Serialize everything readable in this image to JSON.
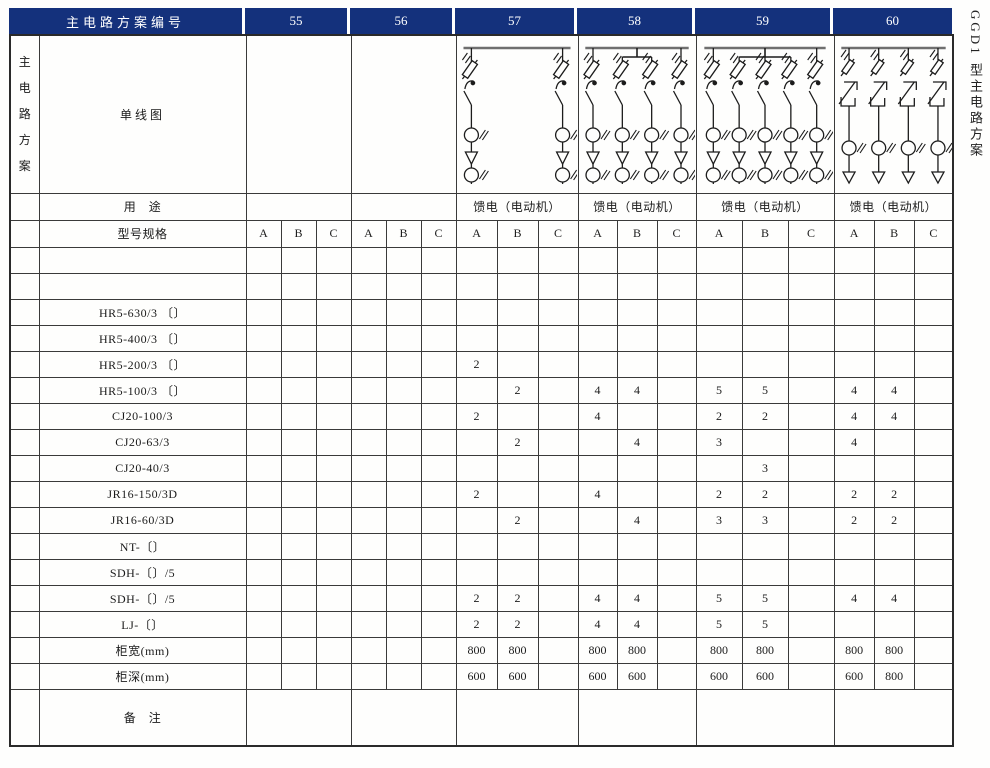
{
  "side_title": "GGD1 型主电路方案",
  "colors": {
    "header_bg": "#14317c",
    "header_text": "#ffffff",
    "grid_line": "#3a3a3a",
    "diagram_stroke": "#1c1c1c",
    "bus_stroke": "#6f6f6f"
  },
  "header": {
    "label": "主电路方案编号",
    "schemes": [
      "55",
      "56",
      "57",
      "58",
      "59",
      "60"
    ]
  },
  "left_panel": {
    "vertical_label": "主电路方案"
  },
  "labels": {
    "diagram": "单线图",
    "usage": "用　途",
    "spec": "型号规格",
    "remarks": "备　注"
  },
  "usage_by_scheme": [
    "",
    "",
    "馈电（电动机）",
    "馈电（电动机）",
    "馈电（电动机）",
    "馈电（电动机）"
  ],
  "spec_sublabels": [
    "A",
    "B",
    "C"
  ],
  "diagrams": {
    "55": null,
    "56": null,
    "57": {
      "feeders": 2,
      "type": "contactor",
      "bracket": null
    },
    "58": {
      "feeders": 4,
      "type": "contactor",
      "bracket": [
        2,
        3
      ]
    },
    "59": {
      "feeders": 5,
      "type": "contactor",
      "bracket": [
        2,
        4
      ]
    },
    "60": {
      "feeders": 4,
      "type": "breaker",
      "bracket": null
    }
  },
  "table": {
    "columns": [
      "55A",
      "55B",
      "55C",
      "56A",
      "56B",
      "56C",
      "57A",
      "57B",
      "57C",
      "58A",
      "58B",
      "58C",
      "59A",
      "59B",
      "59C",
      "60A",
      "60B",
      "60C"
    ],
    "rows": [
      {
        "name": "",
        "values": [
          "",
          "",
          "",
          "",
          "",
          "",
          "",
          "",
          "",
          "",
          "",
          "",
          "",
          "",
          "",
          "",
          "",
          ""
        ]
      },
      {
        "name": "",
        "values": [
          "",
          "",
          "",
          "",
          "",
          "",
          "",
          "",
          "",
          "",
          "",
          "",
          "",
          "",
          "",
          "",
          "",
          ""
        ]
      },
      {
        "name": "HR5-630/3 〔〕",
        "values": [
          "",
          "",
          "",
          "",
          "",
          "",
          "",
          "",
          "",
          "",
          "",
          "",
          "",
          "",
          "",
          "",
          "",
          ""
        ]
      },
      {
        "name": "HR5-400/3 〔〕",
        "values": [
          "",
          "",
          "",
          "",
          "",
          "",
          "",
          "",
          "",
          "",
          "",
          "",
          "",
          "",
          "",
          "",
          "",
          ""
        ]
      },
      {
        "name": "HR5-200/3 〔〕",
        "values": [
          "",
          "",
          "",
          "",
          "",
          "",
          "2",
          "",
          "",
          "",
          "",
          "",
          "",
          "",
          "",
          "",
          "",
          ""
        ]
      },
      {
        "name": "HR5-100/3 〔〕",
        "values": [
          "",
          "",
          "",
          "",
          "",
          "",
          "",
          "2",
          "",
          "4",
          "4",
          "",
          "5",
          "5",
          "",
          "4",
          "4",
          ""
        ]
      },
      {
        "name": "CJ20-100/3",
        "values": [
          "",
          "",
          "",
          "",
          "",
          "",
          "2",
          "",
          "",
          "4",
          "",
          "",
          "2",
          "2",
          "",
          "4",
          "4",
          ""
        ]
      },
      {
        "name": "CJ20-63/3",
        "values": [
          "",
          "",
          "",
          "",
          "",
          "",
          "",
          "2",
          "",
          "",
          "4",
          "",
          "3",
          "",
          "",
          "4",
          "",
          ""
        ]
      },
      {
        "name": "CJ20-40/3",
        "values": [
          "",
          "",
          "",
          "",
          "",
          "",
          "",
          "",
          "",
          "",
          "",
          "",
          "",
          "3",
          "",
          "",
          "",
          ""
        ]
      },
      {
        "name": "JR16-150/3D",
        "values": [
          "",
          "",
          "",
          "",
          "",
          "",
          "2",
          "",
          "",
          "4",
          "",
          "",
          "2",
          "2",
          "",
          "2",
          "2",
          ""
        ]
      },
      {
        "name": "JR16-60/3D",
        "values": [
          "",
          "",
          "",
          "",
          "",
          "",
          "",
          "2",
          "",
          "",
          "4",
          "",
          "3",
          "3",
          "",
          "2",
          "2",
          ""
        ]
      },
      {
        "name": "NT-〔〕",
        "values": [
          "",
          "",
          "",
          "",
          "",
          "",
          "",
          "",
          "",
          "",
          "",
          "",
          "",
          "",
          "",
          "",
          "",
          ""
        ]
      },
      {
        "name": "SDH-〔〕/5",
        "values": [
          "",
          "",
          "",
          "",
          "",
          "",
          "",
          "",
          "",
          "",
          "",
          "",
          "",
          "",
          "",
          "",
          "",
          ""
        ]
      },
      {
        "name": "SDH-〔〕/5",
        "values": [
          "",
          "",
          "",
          "",
          "",
          "",
          "2",
          "2",
          "",
          "4",
          "4",
          "",
          "5",
          "5",
          "",
          "4",
          "4",
          ""
        ]
      },
      {
        "name": "LJ-〔〕",
        "values": [
          "",
          "",
          "",
          "",
          "",
          "",
          "2",
          "2",
          "",
          "4",
          "4",
          "",
          "5",
          "5",
          "",
          "",
          "",
          ""
        ]
      },
      {
        "name": "柜宽(mm)",
        "values": [
          "",
          "",
          "",
          "",
          "",
          "",
          "800",
          "800",
          "",
          "800",
          "800",
          "",
          "800",
          "800",
          "",
          "800",
          "800",
          ""
        ]
      },
      {
        "name": "柜深(mm)",
        "values": [
          "",
          "",
          "",
          "",
          "",
          "",
          "600",
          "600",
          "",
          "600",
          "600",
          "",
          "600",
          "600",
          "",
          "600",
          "800",
          ""
        ]
      }
    ]
  },
  "scheme_cell_widths": [
    105,
    105,
    122,
    118,
    138,
    119
  ]
}
